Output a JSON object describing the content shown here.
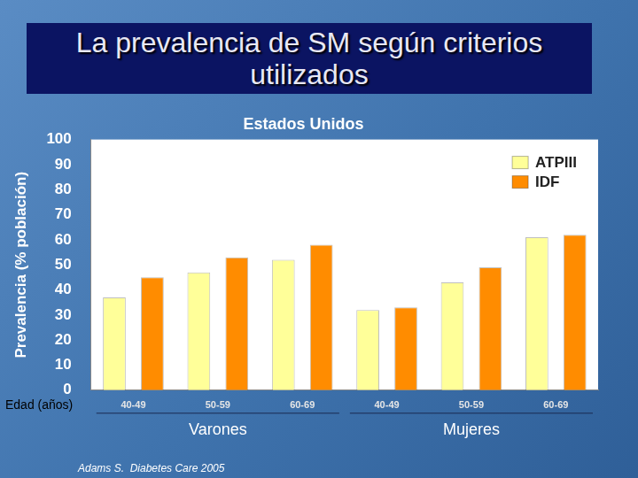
{
  "chart_data": {
    "type": "bar",
    "title": "La prevalencia de SM según criterios utilizados",
    "subtitle": "Estados Unidos",
    "ylabel": "Prevalencia (% población)",
    "xlabel": "Edad (años)",
    "categories": [
      "40-49",
      "50-59",
      "60-69",
      "40-49",
      "50-59",
      "60-69"
    ],
    "category_groups": [
      "Varones",
      "Varones",
      "Varones",
      "Mujeres",
      "Mujeres",
      "Mujeres"
    ],
    "series": [
      {
        "name": "ATPIII",
        "color": "#ffff99",
        "values": [
          37,
          47,
          52,
          32,
          43,
          61
        ]
      },
      {
        "name": "IDF",
        "color": "#ff8c00",
        "values": [
          45,
          53,
          58,
          33,
          49,
          62
        ]
      }
    ],
    "ylim": [
      0,
      100
    ],
    "yticks": [
      0,
      10,
      20,
      30,
      40,
      50,
      60,
      70,
      80,
      90,
      100
    ],
    "grid": false,
    "legend": "upper right",
    "source": "Adams S.  Diabetes Care 2005"
  }
}
